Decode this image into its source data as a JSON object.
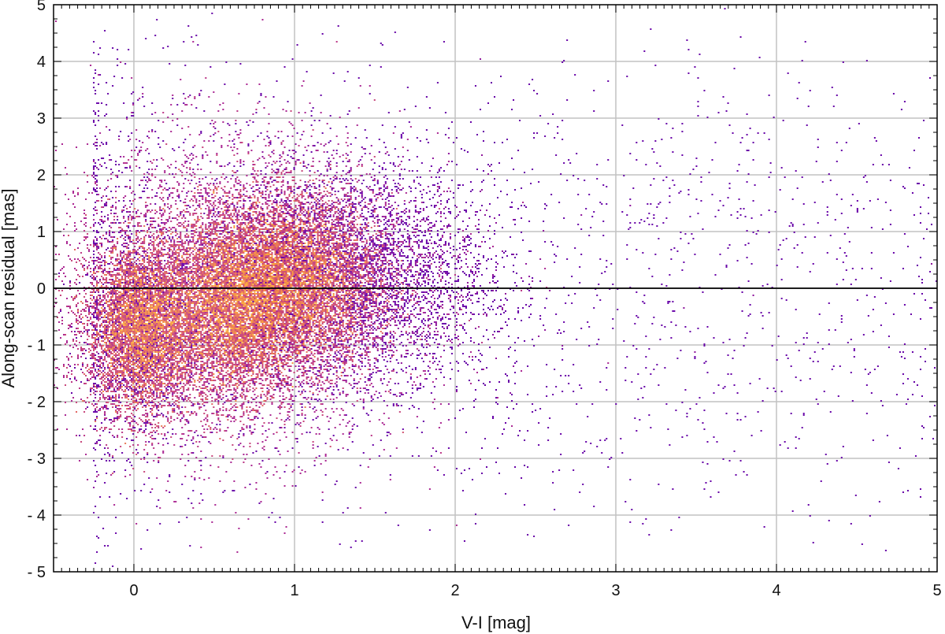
{
  "chart_data": {
    "type": "heatmap",
    "title": "",
    "xlabel": "V-I [mag]",
    "ylabel": "Along-scan residual [mas]",
    "xlim": [
      -0.5,
      5
    ],
    "ylim": [
      -5,
      5
    ],
    "x_ticks": [
      0,
      1,
      2,
      3,
      4,
      5
    ],
    "x_tick_labels": [
      "0",
      "1",
      "2",
      "3",
      "4",
      "5"
    ],
    "y_ticks": [
      5,
      4,
      3,
      2,
      1,
      0,
      -1,
      -2,
      -3,
      -4,
      -5
    ],
    "y_tick_labels": [
      "5",
      "4",
      "3",
      "2",
      "1",
      "0",
      "- 1",
      "- 2",
      "- 3",
      "- 4",
      "- 5"
    ],
    "grid": true,
    "reference_line_y": 0,
    "colormap": [
      "#2b0c8f",
      "#6a00a8",
      "#b12a90",
      "#e16462",
      "#fca636",
      "#fde59b"
    ],
    "density_clusters": [
      {
        "x": 0.05,
        "y": -0.7,
        "peak_relative_density": 1.0
      },
      {
        "x": 0.6,
        "y": -0.3,
        "peak_relative_density": 0.95
      },
      {
        "x": 1.02,
        "y": 0.1,
        "peak_relative_density": 0.9
      }
    ]
  }
}
